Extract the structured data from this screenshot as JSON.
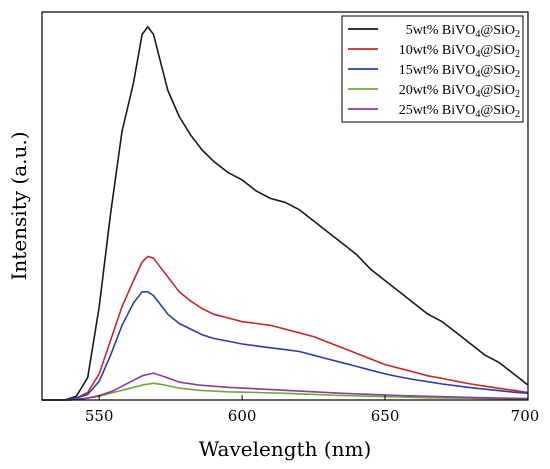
{
  "chart_data": {
    "type": "line",
    "title": "",
    "xlabel": "Wavelength (nm)",
    "ylabel": "Intensity (a.u.)",
    "xlim": [
      530,
      700
    ],
    "ylim": [
      0,
      1.04
    ],
    "x_ticks": [
      550,
      600,
      650,
      700
    ],
    "y_ticks_labeled": false,
    "grid": false,
    "legend_position": "top-right",
    "series": [
      {
        "name": "5wt% BiVO4@SiO2",
        "legend_main": "5wt% BiVO",
        "legend_sub1": "4",
        "legend_mid": "@SiO",
        "legend_sub2": "2",
        "color": "#1a1a1a",
        "x": [
          530,
          538,
          542,
          546,
          550,
          554,
          558,
          562,
          565,
          567,
          569,
          571,
          574,
          578,
          582,
          586,
          590,
          595,
          600,
          605,
          610,
          615,
          620,
          625,
          630,
          635,
          640,
          645,
          650,
          655,
          660,
          665,
          670,
          675,
          680,
          685,
          690,
          695,
          700
        ],
        "y": [
          0.0,
          0.0,
          0.01,
          0.06,
          0.25,
          0.5,
          0.72,
          0.85,
          0.98,
          1.0,
          0.98,
          0.92,
          0.83,
          0.76,
          0.71,
          0.67,
          0.64,
          0.61,
          0.59,
          0.56,
          0.54,
          0.53,
          0.51,
          0.48,
          0.45,
          0.42,
          0.39,
          0.35,
          0.32,
          0.29,
          0.26,
          0.23,
          0.21,
          0.18,
          0.15,
          0.12,
          0.1,
          0.07,
          0.04
        ]
      },
      {
        "name": "10wt% BiVO4@SiO2",
        "legend_main": "10wt% BiVO",
        "legend_sub1": "4",
        "legend_mid": "@SiO",
        "legend_sub2": "2",
        "color": "#c8282a",
        "x": [
          530,
          538,
          542,
          546,
          550,
          554,
          558,
          562,
          565,
          567,
          569,
          571,
          574,
          578,
          582,
          586,
          590,
          595,
          600,
          605,
          610,
          615,
          620,
          625,
          630,
          635,
          640,
          645,
          650,
          655,
          660,
          665,
          670,
          675,
          680,
          685,
          690,
          695,
          700
        ],
        "y": [
          0.0,
          0.0,
          0.005,
          0.02,
          0.07,
          0.16,
          0.25,
          0.32,
          0.37,
          0.385,
          0.38,
          0.36,
          0.33,
          0.29,
          0.265,
          0.245,
          0.23,
          0.22,
          0.21,
          0.205,
          0.2,
          0.19,
          0.18,
          0.17,
          0.155,
          0.14,
          0.125,
          0.11,
          0.095,
          0.085,
          0.075,
          0.065,
          0.058,
          0.05,
          0.043,
          0.037,
          0.031,
          0.026,
          0.02
        ]
      },
      {
        "name": "15wt% BiVO4@SiO2",
        "legend_main": "15wt% BiVO",
        "legend_sub1": "4",
        "legend_mid": "@SiO",
        "legend_sub2": "2",
        "color": "#2b3ea8",
        "x": [
          530,
          538,
          542,
          546,
          550,
          554,
          558,
          562,
          565,
          567,
          569,
          571,
          574,
          578,
          582,
          586,
          590,
          595,
          600,
          605,
          610,
          615,
          620,
          625,
          630,
          635,
          640,
          645,
          650,
          655,
          660,
          665,
          670,
          675,
          680,
          685,
          690,
          695,
          700
        ],
        "y": [
          0.0,
          0.0,
          0.005,
          0.015,
          0.05,
          0.12,
          0.2,
          0.26,
          0.29,
          0.29,
          0.28,
          0.26,
          0.23,
          0.205,
          0.19,
          0.175,
          0.165,
          0.158,
          0.15,
          0.145,
          0.14,
          0.135,
          0.13,
          0.12,
          0.11,
          0.1,
          0.09,
          0.08,
          0.07,
          0.062,
          0.055,
          0.049,
          0.043,
          0.038,
          0.033,
          0.029,
          0.025,
          0.021,
          0.018
        ]
      },
      {
        "name": "20wt% BiVO4@SiO2",
        "legend_main": "20wt% BiVO",
        "legend_sub1": "4",
        "legend_mid": "@SiO",
        "legend_sub2": "2",
        "color": "#6fa83a",
        "x": [
          530,
          540,
          546,
          550,
          555,
          560,
          565,
          569,
          573,
          578,
          585,
          595,
          605,
          615,
          625,
          635,
          645,
          655,
          665,
          675,
          685,
          700
        ],
        "y": [
          0.0,
          0.0,
          0.005,
          0.01,
          0.02,
          0.03,
          0.04,
          0.045,
          0.04,
          0.032,
          0.026,
          0.022,
          0.02,
          0.018,
          0.015,
          0.012,
          0.01,
          0.008,
          0.006,
          0.005,
          0.004,
          0.003
        ]
      },
      {
        "name": "25wt% BiVO4@SiO2",
        "legend_main": "25wt% BiVO",
        "legend_sub1": "4",
        "legend_mid": "@SiO",
        "legend_sub2": "2",
        "color": "#8a3c9c",
        "x": [
          530,
          540,
          546,
          550,
          555,
          560,
          565,
          569,
          573,
          578,
          585,
          595,
          605,
          615,
          625,
          635,
          645,
          655,
          665,
          675,
          685,
          700
        ],
        "y": [
          0.0,
          0.0,
          0.005,
          0.012,
          0.025,
          0.045,
          0.065,
          0.072,
          0.062,
          0.048,
          0.04,
          0.034,
          0.03,
          0.026,
          0.022,
          0.018,
          0.015,
          0.012,
          0.01,
          0.008,
          0.006,
          0.004
        ]
      }
    ]
  }
}
